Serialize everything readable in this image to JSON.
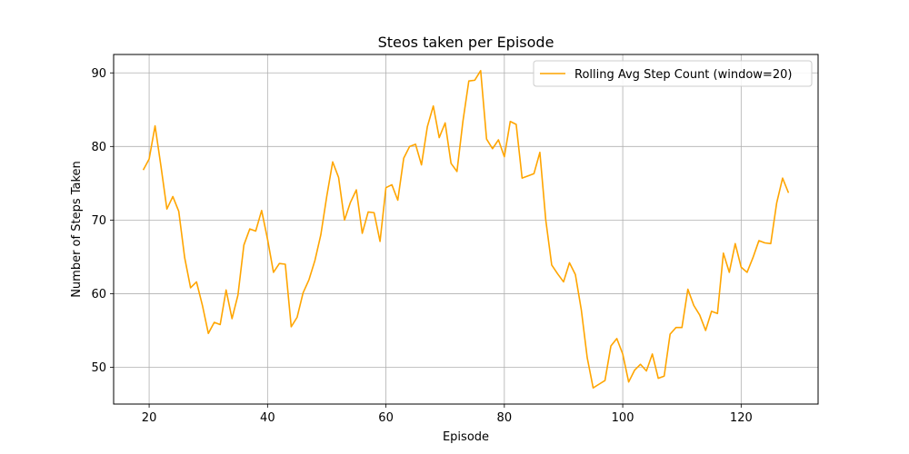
{
  "chart_data": {
    "type": "line",
    "title": "Steos taken per Episode",
    "xlabel": "Episode",
    "ylabel": "Number of Steps Taken",
    "xlim": [
      14,
      133
    ],
    "ylim": [
      45,
      92.5
    ],
    "xticks": [
      20,
      40,
      60,
      80,
      100,
      120
    ],
    "yticks": [
      50,
      60,
      70,
      80,
      90
    ],
    "grid": true,
    "legend_position": "top-right",
    "series": [
      {
        "name": "Rolling Avg Step Count (window=20)",
        "color": "#ffa500",
        "x": [
          19,
          20,
          21,
          22,
          23,
          24,
          25,
          26,
          27,
          28,
          29,
          30,
          31,
          32,
          33,
          34,
          35,
          36,
          37,
          38,
          39,
          40,
          41,
          42,
          43,
          44,
          45,
          46,
          47,
          48,
          49,
          50,
          51,
          52,
          53,
          54,
          55,
          56,
          57,
          58,
          59,
          60,
          61,
          62,
          63,
          64,
          65,
          66,
          67,
          68,
          69,
          70,
          71,
          72,
          73,
          74,
          75,
          76,
          77,
          78,
          79,
          80,
          81,
          82,
          83,
          84,
          85,
          86,
          87,
          88,
          89,
          90,
          91,
          92,
          93,
          94,
          95,
          96,
          97,
          98,
          99,
          100,
          101,
          102,
          103,
          104,
          105,
          106,
          107,
          108,
          109,
          110,
          111,
          112,
          113,
          114,
          115,
          116,
          117,
          118,
          119,
          120,
          121,
          122,
          123,
          124,
          125,
          126,
          127,
          128
        ],
        "y": [
          76.8,
          78.3,
          82.8,
          77.3,
          71.5,
          73.2,
          71.2,
          64.9,
          60.8,
          61.6,
          58.4,
          54.6,
          56.1,
          55.8,
          60.5,
          56.6,
          59.8,
          66.6,
          68.8,
          68.5,
          71.3,
          67.4,
          62.9,
          64.1,
          64.0,
          55.5,
          56.8,
          60.1,
          61.9,
          64.5,
          68.0,
          73.2,
          77.9,
          75.8,
          70.0,
          72.4,
          74.1,
          68.2,
          71.1,
          71.0,
          67.1,
          74.4,
          74.8,
          72.7,
          78.4,
          80.0,
          80.3,
          77.5,
          82.7,
          85.5,
          81.2,
          83.2,
          77.7,
          76.6,
          83.4,
          88.9,
          89.0,
          90.3,
          81.0,
          79.7,
          80.9,
          78.6,
          83.4,
          83.0,
          75.7,
          76.0,
          76.3,
          79.2,
          70.0,
          63.9,
          62.7,
          61.6,
          64.2,
          62.6,
          57.8,
          51.3,
          47.2,
          47.7,
          48.2,
          52.9,
          53.9,
          51.8,
          48.0,
          49.6,
          50.4,
          49.5,
          51.8,
          48.5,
          48.8,
          54.5,
          55.4,
          55.4,
          60.6,
          58.4,
          57.1,
          55.0,
          57.6,
          57.3,
          65.5,
          62.9,
          66.8,
          63.6,
          62.9,
          64.9,
          67.2,
          66.9,
          66.8,
          72.3,
          75.7,
          73.7
        ]
      }
    ]
  }
}
